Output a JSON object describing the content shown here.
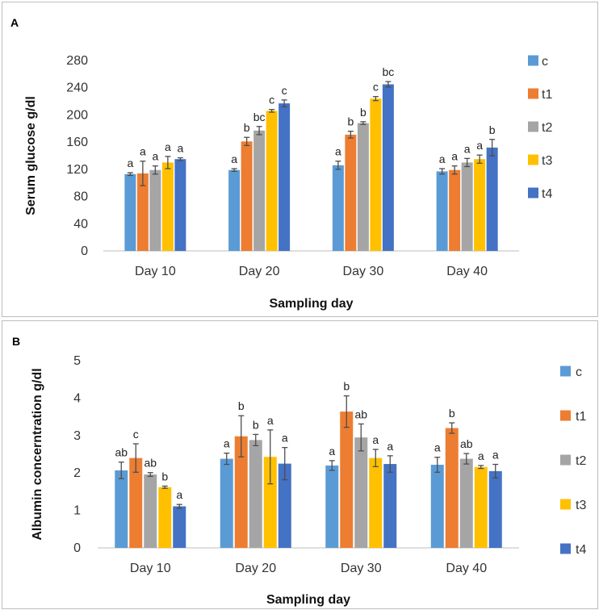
{
  "chart_data": [
    {
      "type": "bar",
      "panel_label": "A",
      "title": "",
      "xlabel": "Sampling day",
      "ylabel": "Serum glucose g/dl",
      "ylim": [
        0,
        280
      ],
      "yticks": [
        0,
        40,
        80,
        120,
        160,
        200,
        240,
        280
      ],
      "yticklabels": [
        "0",
        "40",
        "80",
        "120",
        "160",
        "200",
        "240",
        "280"
      ],
      "categories": [
        "Day 10",
        "Day 20",
        "Day 30",
        "Day 40"
      ],
      "legend_position": "right",
      "series": [
        {
          "name": "c",
          "color": "#5B9BD5",
          "values": [
            113,
            119,
            126,
            117
          ],
          "errors": [
            2,
            2,
            6,
            4
          ],
          "labels": [
            "a",
            "a",
            "a",
            "a"
          ]
        },
        {
          "name": "t1",
          "color": "#ED7D31",
          "values": [
            114,
            161,
            171,
            119
          ],
          "errors": [
            18,
            6,
            5,
            6
          ],
          "labels": [
            "a",
            "b",
            "b",
            "a"
          ]
        },
        {
          "name": "t2",
          "color": "#A5A5A5",
          "values": [
            119,
            177,
            188,
            130
          ],
          "errors": [
            6,
            6,
            2,
            6
          ],
          "labels": [
            "a",
            "bc",
            "b",
            "a"
          ]
        },
        {
          "name": "t3",
          "color": "#FFC000",
          "values": [
            130,
            206,
            224,
            135
          ],
          "errors": [
            9,
            2,
            3,
            6
          ],
          "labels": [
            "a",
            "c",
            "c",
            "a"
          ]
        },
        {
          "name": "t4",
          "color": "#4472C4",
          "values": [
            135,
            217,
            245,
            152
          ],
          "errors": [
            2,
            5,
            4,
            12
          ],
          "labels": [
            "a",
            "c",
            "bc",
            "b"
          ]
        }
      ]
    },
    {
      "type": "bar",
      "panel_label": "B",
      "title": "",
      "xlabel": "Sampling day",
      "ylabel": "Albumin concerntration g/dl",
      "ylim": [
        0,
        5
      ],
      "yticks": [
        0,
        1,
        2,
        3,
        4,
        5
      ],
      "yticklabels": [
        "0",
        "1",
        "2",
        "3",
        "4",
        "5"
      ],
      "categories": [
        "Day 10",
        "Day 20",
        "Day 30",
        "Day 40"
      ],
      "legend_position": "right",
      "series": [
        {
          "name": "c",
          "color": "#5B9BD5",
          "values": [
            2.07,
            2.38,
            2.2,
            2.22
          ],
          "errors": [
            0.22,
            0.15,
            0.13,
            0.2
          ],
          "labels": [
            "ab",
            "a",
            "a",
            "a"
          ]
        },
        {
          "name": "t1",
          "color": "#ED7D31",
          "values": [
            2.4,
            2.98,
            3.64,
            3.2
          ],
          "errors": [
            0.38,
            0.55,
            0.42,
            0.14
          ],
          "labels": [
            "c",
            "b",
            "b",
            "b"
          ]
        },
        {
          "name": "t2",
          "color": "#A5A5A5",
          "values": [
            1.96,
            2.88,
            2.95,
            2.38
          ],
          "errors": [
            0.05,
            0.15,
            0.36,
            0.14
          ],
          "labels": [
            "ab",
            "b",
            "ab",
            "ab"
          ]
        },
        {
          "name": "t3",
          "color": "#FFC000",
          "values": [
            1.62,
            2.43,
            2.4,
            2.16
          ],
          "errors": [
            0.03,
            0.72,
            0.23,
            0.04
          ],
          "labels": [
            "b",
            "a",
            "a",
            "a"
          ]
        },
        {
          "name": "t4",
          "color": "#4472C4",
          "values": [
            1.11,
            2.25,
            2.24,
            2.05
          ],
          "errors": [
            0.05,
            0.43,
            0.22,
            0.18
          ],
          "labels": [
            "a",
            "a",
            "a",
            "a"
          ]
        }
      ]
    }
  ]
}
